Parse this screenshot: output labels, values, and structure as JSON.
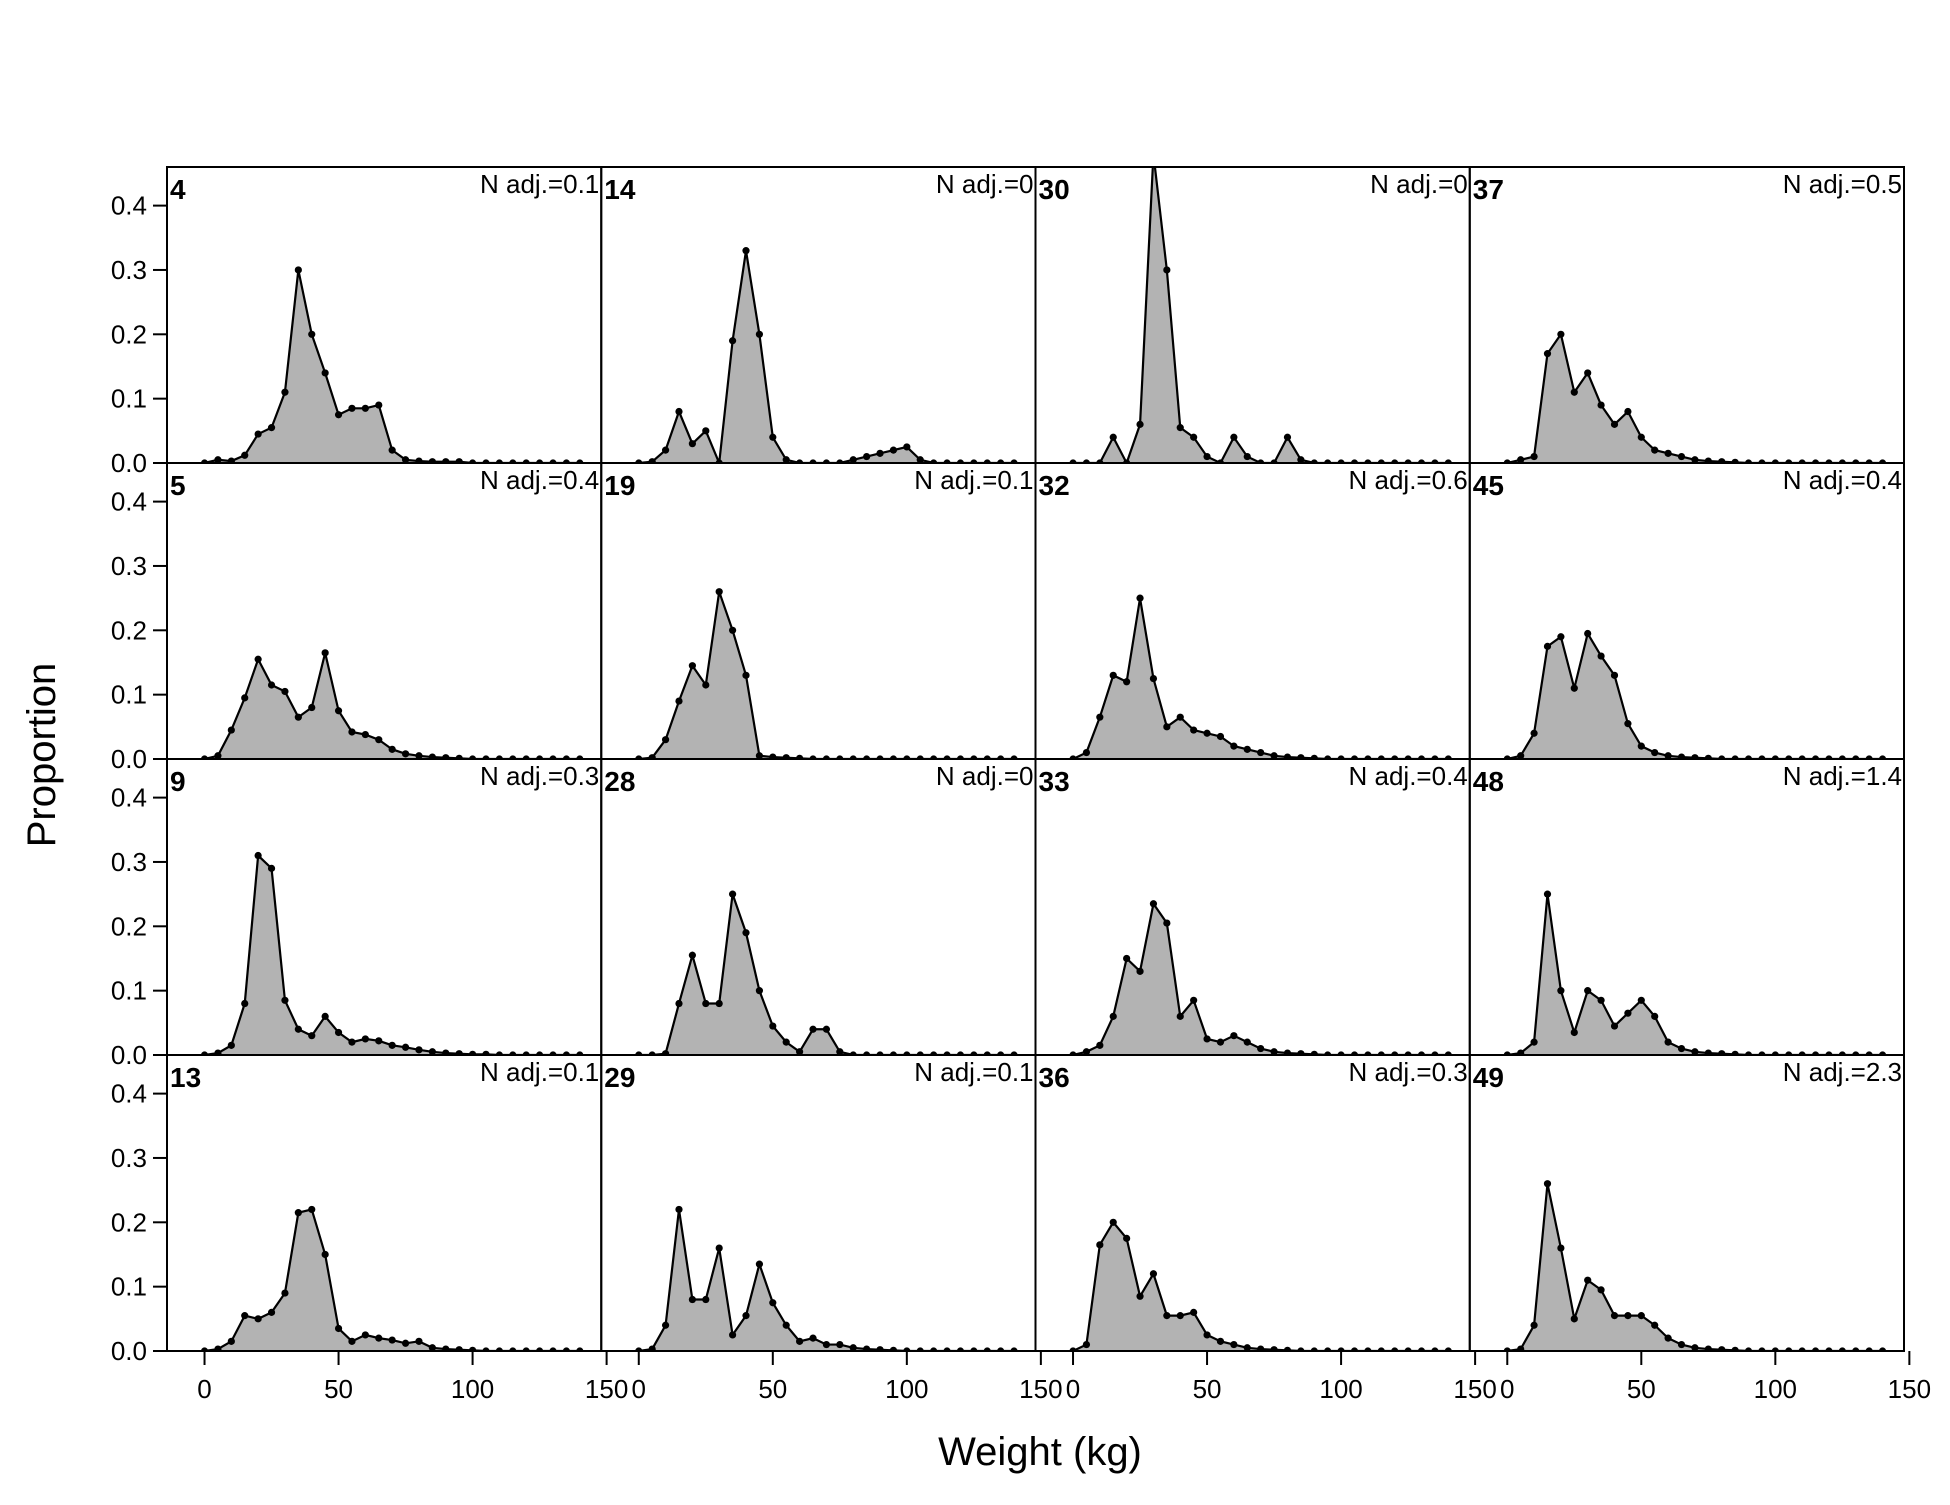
{
  "chart_data": {
    "type": "area",
    "layout": {
      "rows": 4,
      "cols": 4
    },
    "xlabel": "Weight (kg)",
    "ylabel": "Proportion",
    "xlim": [
      -14,
      148
    ],
    "ylim": [
      0,
      0.46
    ],
    "x_ticks": [
      0,
      50,
      100,
      150
    ],
    "x_tick_labels": [
      "0",
      "50",
      "100",
      "150"
    ],
    "y_ticks": [
      0.0,
      0.1,
      0.2,
      0.3,
      0.4
    ],
    "y_tick_labels": [
      "0.0",
      "0.1",
      "0.2",
      "0.3",
      "0.4"
    ],
    "fill_color": "#b3b3b3",
    "line_color": "#000000",
    "x": [
      0,
      5,
      10,
      15,
      20,
      25,
      30,
      35,
      40,
      45,
      50,
      55,
      60,
      65,
      70,
      75,
      80,
      85,
      90,
      95,
      100,
      105,
      110,
      115,
      120,
      125,
      130,
      135,
      140
    ],
    "panels": [
      {
        "id": "4",
        "note": "N adj.=0.1",
        "values": [
          0,
          0.005,
          0.003,
          0.012,
          0.045,
          0.055,
          0.11,
          0.3,
          0.2,
          0.14,
          0.075,
          0.085,
          0.085,
          0.09,
          0.02,
          0.005,
          0.003,
          0.002,
          0.002,
          0.002,
          0,
          0,
          0,
          0,
          0,
          0,
          0,
          0,
          0
        ]
      },
      {
        "id": "14",
        "note": "N adj.=0",
        "values": [
          0,
          0.002,
          0.02,
          0.08,
          0.03,
          0.05,
          0,
          0.19,
          0.33,
          0.2,
          0.04,
          0.005,
          0,
          0,
          0,
          0,
          0.005,
          0.01,
          0.015,
          0.02,
          0.025,
          0.005,
          0,
          0,
          0,
          0,
          0,
          0,
          0
        ]
      },
      {
        "id": "30",
        "note": "N adj.=0",
        "values": [
          0,
          0,
          0,
          0.04,
          0,
          0.06,
          0.58,
          0.3,
          0.055,
          0.04,
          0.01,
          0,
          0.04,
          0.01,
          0,
          0,
          0.04,
          0.005,
          0,
          0,
          0,
          0,
          0,
          0,
          0,
          0,
          0,
          0,
          0
        ]
      },
      {
        "id": "37",
        "note": "N adj.=0.5",
        "values": [
          0,
          0.005,
          0.01,
          0.17,
          0.2,
          0.11,
          0.14,
          0.09,
          0.06,
          0.08,
          0.04,
          0.02,
          0.015,
          0.01,
          0.005,
          0.003,
          0.002,
          0.001,
          0,
          0,
          0,
          0,
          0,
          0,
          0,
          0,
          0,
          0,
          0
        ]
      },
      {
        "id": "5",
        "note": "N adj.=0.4",
        "values": [
          0,
          0.005,
          0.045,
          0.095,
          0.155,
          0.115,
          0.105,
          0.065,
          0.08,
          0.165,
          0.075,
          0.042,
          0.038,
          0.03,
          0.015,
          0.008,
          0.005,
          0.003,
          0.002,
          0.001,
          0,
          0,
          0,
          0,
          0,
          0,
          0,
          0,
          0
        ]
      },
      {
        "id": "19",
        "note": "N adj.=0.1",
        "values": [
          0,
          0.002,
          0.03,
          0.09,
          0.145,
          0.115,
          0.26,
          0.2,
          0.13,
          0.005,
          0.003,
          0.002,
          0.001,
          0,
          0,
          0,
          0,
          0,
          0,
          0,
          0,
          0,
          0,
          0,
          0,
          0,
          0,
          0,
          0
        ]
      },
      {
        "id": "32",
        "note": "N adj.=0.6",
        "values": [
          0,
          0.01,
          0.065,
          0.13,
          0.12,
          0.25,
          0.125,
          0.05,
          0.065,
          0.045,
          0.04,
          0.035,
          0.02,
          0.015,
          0.01,
          0.005,
          0.003,
          0.002,
          0.001,
          0,
          0,
          0,
          0,
          0,
          0,
          0,
          0,
          0,
          0
        ]
      },
      {
        "id": "45",
        "note": "N adj.=0.4",
        "values": [
          0,
          0.005,
          0.04,
          0.175,
          0.19,
          0.11,
          0.195,
          0.16,
          0.13,
          0.055,
          0.02,
          0.01,
          0.005,
          0.003,
          0.002,
          0.001,
          0,
          0,
          0,
          0,
          0,
          0,
          0,
          0,
          0,
          0,
          0,
          0,
          0
        ]
      },
      {
        "id": "9",
        "note": "N adj.=0.3",
        "values": [
          0,
          0.003,
          0.015,
          0.08,
          0.31,
          0.29,
          0.085,
          0.04,
          0.03,
          0.06,
          0.035,
          0.02,
          0.025,
          0.022,
          0.015,
          0.012,
          0.008,
          0.005,
          0.003,
          0.002,
          0.001,
          0.001,
          0,
          0,
          0,
          0,
          0,
          0,
          0
        ]
      },
      {
        "id": "28",
        "note": "N adj.=0",
        "values": [
          0,
          0,
          0.002,
          0.08,
          0.155,
          0.08,
          0.08,
          0.25,
          0.19,
          0.1,
          0.045,
          0.02,
          0.005,
          0.04,
          0.04,
          0.005,
          0,
          0,
          0,
          0,
          0,
          0,
          0,
          0,
          0,
          0,
          0,
          0,
          0
        ]
      },
      {
        "id": "33",
        "note": "N adj.=0.4",
        "values": [
          0,
          0.005,
          0.015,
          0.06,
          0.15,
          0.13,
          0.235,
          0.205,
          0.06,
          0.085,
          0.025,
          0.02,
          0.03,
          0.02,
          0.01,
          0.005,
          0.003,
          0.002,
          0.001,
          0,
          0,
          0,
          0,
          0,
          0,
          0,
          0,
          0,
          0
        ]
      },
      {
        "id": "48",
        "note": "N adj.=1.4",
        "values": [
          0,
          0.003,
          0.02,
          0.25,
          0.1,
          0.035,
          0.1,
          0.085,
          0.045,
          0.065,
          0.085,
          0.06,
          0.02,
          0.01,
          0.005,
          0.003,
          0.002,
          0.001,
          0,
          0,
          0,
          0,
          0,
          0,
          0,
          0,
          0,
          0,
          0
        ]
      },
      {
        "id": "13",
        "note": "N adj.=0.1",
        "values": [
          0,
          0.003,
          0.015,
          0.055,
          0.05,
          0.06,
          0.09,
          0.215,
          0.22,
          0.15,
          0.035,
          0.015,
          0.025,
          0.02,
          0.017,
          0.012,
          0.015,
          0.005,
          0.003,
          0.002,
          0.001,
          0,
          0,
          0,
          0,
          0,
          0,
          0,
          0
        ]
      },
      {
        "id": "29",
        "note": "N adj.=0.1",
        "values": [
          0,
          0.003,
          0.04,
          0.22,
          0.08,
          0.08,
          0.16,
          0.025,
          0.055,
          0.135,
          0.075,
          0.04,
          0.015,
          0.02,
          0.01,
          0.01,
          0.005,
          0.003,
          0.002,
          0.001,
          0,
          0,
          0,
          0,
          0,
          0,
          0,
          0,
          0
        ]
      },
      {
        "id": "36",
        "note": "N adj.=0.3",
        "values": [
          0,
          0.01,
          0.165,
          0.2,
          0.175,
          0.085,
          0.12,
          0.055,
          0.055,
          0.06,
          0.025,
          0.015,
          0.01,
          0.005,
          0.003,
          0.002,
          0.001,
          0,
          0,
          0,
          0,
          0,
          0,
          0,
          0,
          0,
          0,
          0,
          0
        ]
      },
      {
        "id": "49",
        "note": "N adj.=2.3",
        "values": [
          0,
          0.003,
          0.04,
          0.26,
          0.16,
          0.05,
          0.11,
          0.095,
          0.055,
          0.055,
          0.055,
          0.04,
          0.02,
          0.01,
          0.005,
          0.003,
          0.002,
          0.001,
          0,
          0,
          0,
          0,
          0,
          0,
          0,
          0,
          0,
          0,
          0
        ]
      }
    ]
  }
}
